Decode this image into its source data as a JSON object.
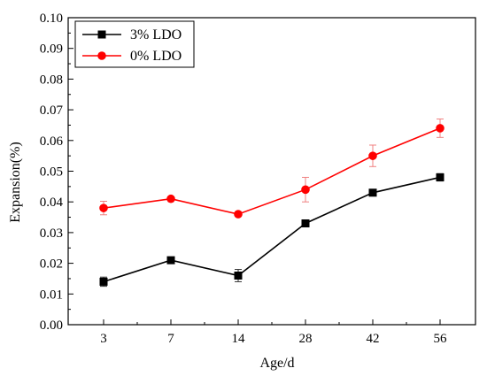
{
  "chart_data": {
    "type": "line",
    "title": "",
    "xlabel": "Age/d",
    "ylabel": "Expansion(%)",
    "categories": [
      "3",
      "7",
      "14",
      "28",
      "42",
      "56"
    ],
    "ylim": [
      0,
      0.1
    ],
    "yticks": [
      "0.00",
      "0.01",
      "0.02",
      "0.03",
      "0.04",
      "0.05",
      "0.06",
      "0.07",
      "0.08",
      "0.09",
      "0.10"
    ],
    "grid": false,
    "legend_position": "top-left",
    "series": [
      {
        "name": "3% LDO",
        "color": "#000000",
        "marker": "square",
        "values": [
          0.014,
          0.021,
          0.016,
          0.033,
          0.043,
          0.048
        ],
        "errors": [
          0.0015,
          0.0005,
          0.002,
          0.0005,
          0.0005,
          0.0012
        ]
      },
      {
        "name": "0% LDO",
        "color": "#ff0000",
        "marker": "circle",
        "values": [
          0.038,
          0.041,
          0.036,
          0.044,
          0.055,
          0.064
        ],
        "errors": [
          0.0022,
          0.0005,
          0.0005,
          0.004,
          0.0035,
          0.003
        ]
      }
    ]
  }
}
